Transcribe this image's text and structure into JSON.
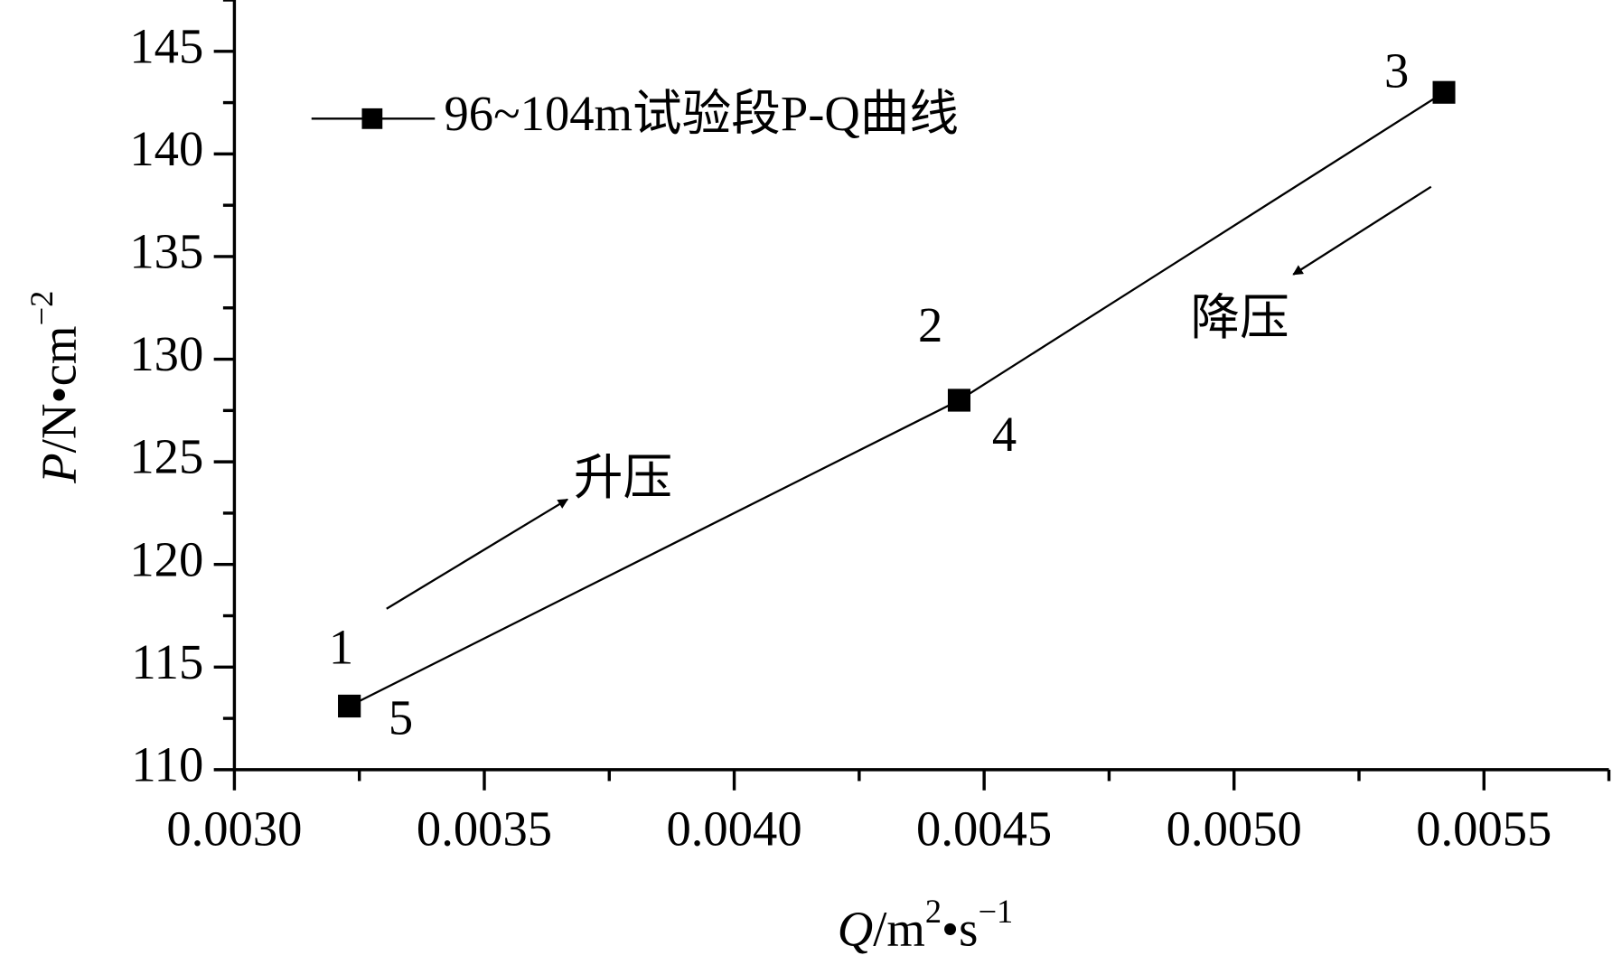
{
  "chart_data": {
    "type": "line",
    "x": [
      0.00323,
      0.00445,
      0.00542,
      0.00445,
      0.00323
    ],
    "series": [
      {
        "name": "96~104m试验段P-Q曲线",
        "color": "#000000",
        "values": [
          113.1,
          128.0,
          143.0,
          128.0,
          113.1
        ]
      }
    ],
    "point_labels": [
      "1",
      "2",
      "3",
      "4",
      "5"
    ],
    "xlim": [
      0.003,
      0.00575
    ],
    "ylim": [
      110,
      147.5
    ],
    "xticks": [
      {
        "value": 0.003,
        "label": "0.0030"
      },
      {
        "value": 0.0035,
        "label": "0.0035"
      },
      {
        "value": 0.004,
        "label": "0.0040"
      },
      {
        "value": 0.0045,
        "label": "0.0045"
      },
      {
        "value": 0.005,
        "label": "0.0050"
      },
      {
        "value": 0.0055,
        "label": "0.0055"
      }
    ],
    "xminorticks": [
      0.00325,
      0.00375,
      0.00425,
      0.00475,
      0.00525,
      0.00575
    ],
    "yticks": [
      110,
      115,
      120,
      125,
      130,
      135,
      140,
      145
    ],
    "yminorticks": [
      112.5,
      117.5,
      122.5,
      127.5,
      132.5,
      137.5,
      142.5,
      147.5
    ],
    "xlabel": {
      "italic": "Q",
      "text": "/m",
      "sup1": "2",
      "text2": "•s",
      "sup2": "−1"
    },
    "ylabel": {
      "italic": "P",
      "text": "/N•cm",
      "sup": "−2"
    },
    "annotations": [
      "升压",
      "降压"
    ],
    "legend": "upper left"
  }
}
